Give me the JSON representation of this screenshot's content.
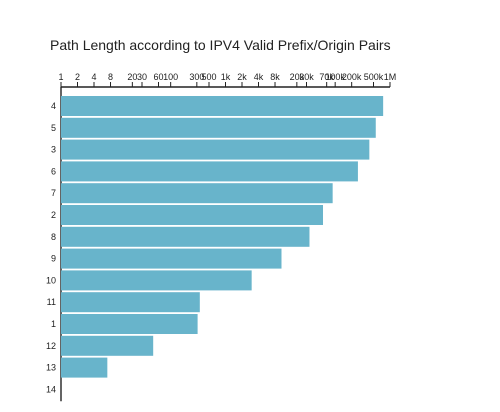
{
  "chart_data": {
    "type": "bar",
    "orientation": "horizontal",
    "title": "Path Length according to IPV4 Valid Prefix/Origin Pairs",
    "x_scale": "log",
    "xlim": [
      1,
      1000000
    ],
    "x_axis_position": "top",
    "x_ticks": [
      1,
      2,
      4,
      8,
      20,
      30,
      60,
      100,
      300,
      500,
      1000,
      2000,
      4000,
      8000,
      20000,
      30000,
      70000,
      100000,
      200000,
      500000,
      1000000
    ],
    "x_tick_labels": [
      "1",
      "2",
      "4",
      "8",
      "20",
      "30",
      "60",
      "100",
      "300",
      "500",
      "1k",
      "2k",
      "4k",
      "8k",
      "20k",
      "30k",
      "70k",
      "100k",
      "200k",
      "500k",
      "1M"
    ],
    "categories": [
      "4",
      "5",
      "3",
      "6",
      "7",
      "2",
      "8",
      "9",
      "10",
      "11",
      "1",
      "12",
      "13",
      "14"
    ],
    "values": [
      750000,
      550000,
      420000,
      260000,
      90000,
      60000,
      34000,
      10500,
      3000,
      340,
      310,
      48,
      7,
      1
    ],
    "colors": {
      "bar": "#68b4cb"
    }
  }
}
